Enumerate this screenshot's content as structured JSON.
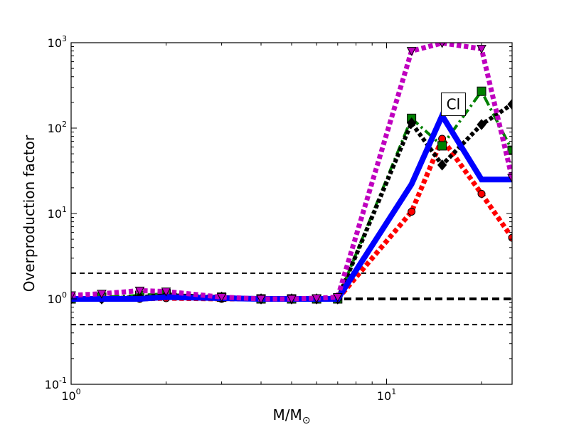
{
  "chart_data": {
    "type": "line",
    "xscale": "log",
    "yscale": "log",
    "xlim": [
      1,
      25
    ],
    "ylim": [
      0.1,
      1000
    ],
    "xlabel": "M/M",
    "xlabel_sub": "⊙",
    "ylabel": "Overproduction factor",
    "x_ticks": [
      {
        "value": 1,
        "base": "10",
        "exp": "0"
      },
      {
        "value": 10,
        "base": "10",
        "exp": "1"
      }
    ],
    "y_ticks": [
      {
        "value": 0.1,
        "base": "10",
        "exp": "-1"
      },
      {
        "value": 1,
        "base": "10",
        "exp": "0"
      },
      {
        "value": 10,
        "base": "10",
        "exp": "1"
      },
      {
        "value": 100,
        "base": "10",
        "exp": "2"
      },
      {
        "value": 1000,
        "base": "10",
        "exp": "3"
      }
    ],
    "reference_lines": [
      {
        "y": 2,
        "style": "dashed",
        "width": 2
      },
      {
        "y": 1,
        "style": "dashed",
        "width": 4
      },
      {
        "y": 0.5,
        "style": "dashed",
        "width": 2
      }
    ],
    "annotation": {
      "text": "Cl",
      "x": 16.2,
      "y": 190
    },
    "series": [
      {
        "color": "#ff0000",
        "line": "dotted",
        "width": 7,
        "marker": "circle",
        "points": [
          [
            1,
            1.0
          ],
          [
            1.25,
            1.0
          ],
          [
            1.65,
            1.0
          ],
          [
            2,
            1.02
          ],
          [
            3,
            1.0
          ],
          [
            4,
            1.0
          ],
          [
            5,
            1.0
          ],
          [
            6,
            1.0
          ],
          [
            7,
            1.0
          ],
          [
            12,
            10.5
          ],
          [
            15,
            75
          ],
          [
            20,
            17
          ],
          [
            25,
            5.2
          ]
        ]
      },
      {
        "color": "#008000",
        "line": "dashdot",
        "width": 4,
        "marker": "square",
        "points": [
          [
            1,
            1.0
          ],
          [
            1.25,
            1.05
          ],
          [
            1.65,
            1.1
          ],
          [
            2,
            1.15
          ],
          [
            3,
            1.05
          ],
          [
            4,
            1.0
          ],
          [
            5,
            1.0
          ],
          [
            6,
            1.0
          ],
          [
            7,
            1.0
          ],
          [
            12,
            130
          ],
          [
            15,
            62
          ],
          [
            20,
            270
          ],
          [
            25,
            55
          ]
        ]
      },
      {
        "color": "#000000",
        "line": "dotted",
        "width": 6,
        "marker": "diamond",
        "points": [
          [
            1,
            1.0
          ],
          [
            1.25,
            1.0
          ],
          [
            1.65,
            1.05
          ],
          [
            2,
            1.1
          ],
          [
            3,
            1.05
          ],
          [
            4,
            1.0
          ],
          [
            5,
            1.0
          ],
          [
            6,
            1.0
          ],
          [
            7,
            1.0
          ],
          [
            12,
            115
          ],
          [
            15,
            37
          ],
          [
            20,
            110
          ],
          [
            25,
            190
          ]
        ]
      },
      {
        "color": "#0000ff",
        "line": "solid",
        "width": 8,
        "marker": "",
        "points": [
          [
            1,
            1.0
          ],
          [
            1.25,
            1.0
          ],
          [
            1.65,
            1.0
          ],
          [
            2,
            1.05
          ],
          [
            3,
            1.02
          ],
          [
            4,
            1.0
          ],
          [
            5,
            1.0
          ],
          [
            6,
            1.0
          ],
          [
            7,
            1.0
          ],
          [
            12,
            22
          ],
          [
            15,
            140
          ],
          [
            20,
            25
          ],
          [
            25,
            25
          ]
        ]
      },
      {
        "color": "#bf00bf",
        "line": "dotted",
        "width": 7,
        "marker": "triangle-down",
        "points": [
          [
            1,
            1.1
          ],
          [
            1.25,
            1.15
          ],
          [
            1.65,
            1.25
          ],
          [
            2,
            1.22
          ],
          [
            3,
            1.05
          ],
          [
            4,
            1.0
          ],
          [
            5,
            1.0
          ],
          [
            6,
            1.02
          ],
          [
            7,
            1.05
          ],
          [
            12,
            800
          ],
          [
            15,
            990
          ],
          [
            20,
            850
          ],
          [
            25,
            26
          ]
        ]
      }
    ]
  }
}
